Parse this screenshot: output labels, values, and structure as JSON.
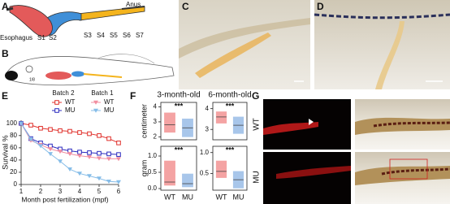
{
  "panel_labels": [
    "A",
    "B",
    "C",
    "D",
    "E",
    "F",
    "G"
  ],
  "panel_a": {
    "anus": "Anus",
    "esophagus": "Esophagus",
    "segments": [
      "S1",
      "S2",
      "S3",
      "S4",
      "S5",
      "S6",
      "S7"
    ]
  },
  "panel_b": {
    "scale": "1/8"
  },
  "panel_g": {
    "rows": [
      "WT",
      "MU"
    ]
  },
  "chart_data": [
    {
      "type": "line",
      "ylabel": "Survival %",
      "xlabel": "Month post fertilization (mpf)",
      "x": [
        1,
        1.5,
        2,
        2.5,
        3,
        3.5,
        4,
        4.5,
        5,
        5.5,
        6
      ],
      "xlim": [
        1,
        6
      ],
      "xticks": [
        1,
        2,
        3,
        4,
        5,
        6
      ],
      "ylim": [
        0,
        105
      ],
      "yticks": [
        0,
        20,
        40,
        60,
        80,
        100
      ],
      "series": [
        {
          "name": "WT",
          "group": "Batch 2",
          "color": "#e0312c",
          "marker": "square",
          "values": [
            100,
            97,
            92,
            90,
            88,
            87,
            85,
            83,
            80,
            75,
            68
          ]
        },
        {
          "name": "MU",
          "group": "Batch 2",
          "color": "#2b2bbf",
          "marker": "square",
          "values": [
            100,
            75,
            68,
            63,
            58,
            55,
            53,
            52,
            51,
            50,
            49
          ]
        },
        {
          "name": "WT",
          "group": "Batch 1",
          "color": "#f28ea0",
          "marker": "triangle",
          "values": [
            100,
            72,
            65,
            58,
            54,
            50,
            47,
            45,
            43,
            42,
            42
          ]
        },
        {
          "name": "MU",
          "group": "Batch 1",
          "color": "#86bde8",
          "marker": "triangle",
          "values": [
            100,
            74,
            63,
            50,
            38,
            25,
            18,
            14,
            10,
            5,
            4
          ]
        }
      ]
    },
    {
      "type": "box",
      "title": "3-month-old",
      "ylabel": "centimeter",
      "annotation": "***",
      "ylim": [
        1.8,
        4.3
      ],
      "yticks": [
        2,
        3,
        4
      ],
      "colors": [
        "#f4a3a3",
        "#a8c6ea"
      ],
      "boxes": [
        {
          "q1": 2.3,
          "median": 2.8,
          "q3": 3.6
        },
        {
          "q1": 2.0,
          "median": 2.6,
          "q3": 3.2
        }
      ]
    },
    {
      "type": "box",
      "title": "6-month-old",
      "annotation": "***",
      "ylim": [
        2.5,
        4.3
      ],
      "yticks": [
        3,
        4
      ],
      "colors": [
        "#f4a3a3",
        "#a8c6ea"
      ],
      "boxes": [
        {
          "q1": 3.3,
          "median": 3.6,
          "q3": 3.85
        },
        {
          "q1": 2.8,
          "median": 3.2,
          "q3": 3.6
        }
      ]
    },
    {
      "type": "box",
      "ylabel": "gram",
      "annotation": "***",
      "categories": [
        "WT",
        "MU"
      ],
      "ylim": [
        -0.05,
        1.3
      ],
      "yticks": [
        {
          "value": 0,
          "label": "0.0"
        },
        0.5,
        {
          "value": 1,
          "label": "1.0"
        }
      ],
      "colors": [
        "#f4a3a3",
        "#a8c6ea"
      ],
      "boxes": [
        {
          "q1": 0.1,
          "median": 0.2,
          "q3": 0.85
        },
        {
          "q1": 0.05,
          "median": 0.15,
          "q3": 0.45
        }
      ]
    },
    {
      "type": "box",
      "annotation": "***",
      "categories": [
        "WT",
        "MU"
      ],
      "ylim": [
        0.1,
        1.15
      ],
      "yticks": [
        0.5,
        {
          "value": 1,
          "label": "1.0"
        }
      ],
      "colors": [
        "#f4a3a3",
        "#a8c6ea"
      ],
      "boxes": [
        {
          "q1": 0.4,
          "median": 0.55,
          "q3": 0.8
        },
        {
          "q1": 0.15,
          "median": 0.35,
          "q3": 0.55
        }
      ]
    }
  ]
}
